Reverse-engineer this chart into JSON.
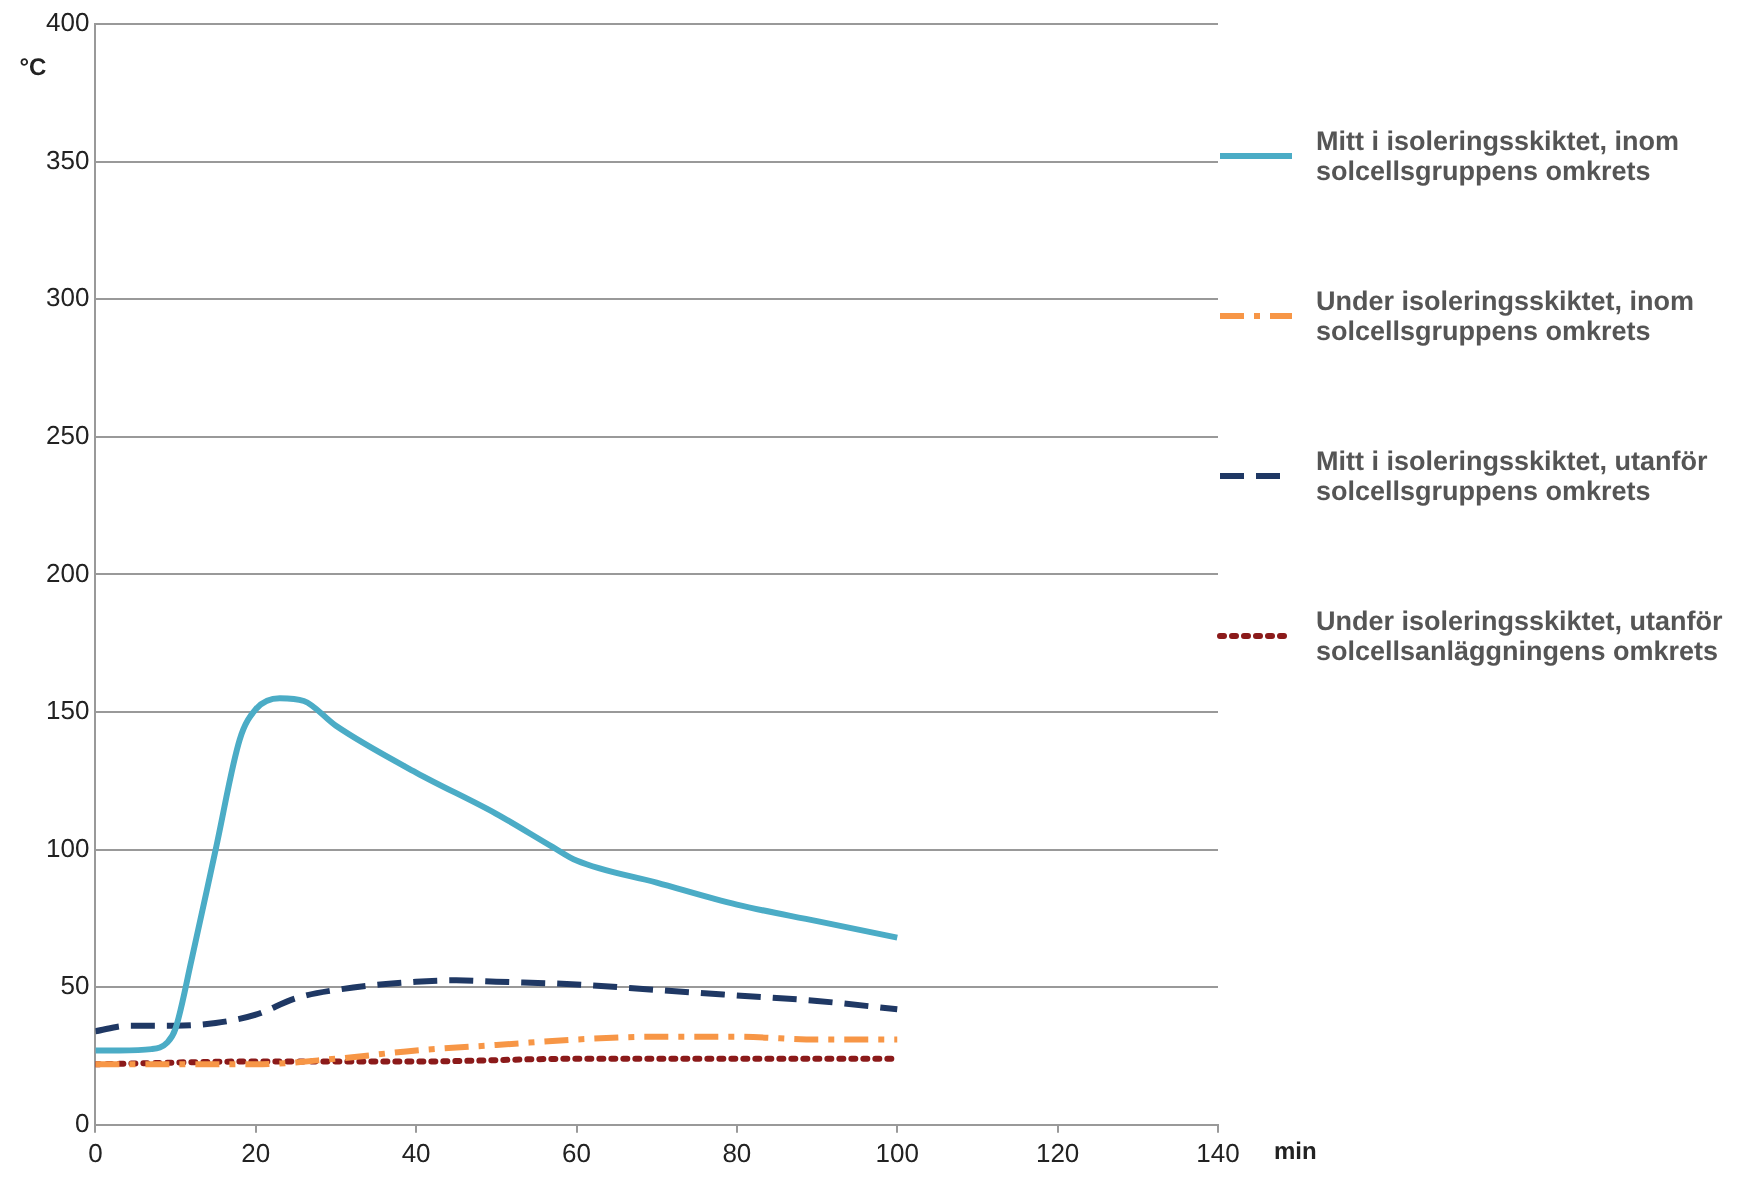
{
  "chart_data": {
    "type": "line",
    "xlabel": "min",
    "ylabel": "°C",
    "xlim": [
      0,
      140
    ],
    "xticks": [
      0,
      20,
      40,
      60,
      80,
      100,
      120,
      140
    ],
    "ylim": [
      0,
      400
    ],
    "yticks": [
      0,
      50,
      100,
      150,
      200,
      250,
      300,
      350,
      400
    ],
    "grid": "y",
    "legend": "right",
    "marker": "none",
    "series": [
      {
        "name": "Mitt i isoleringsskiktet, inom solcellsgruppens omkrets",
        "color": "#4bacc6",
        "line_style": "solid",
        "x": [
          0,
          3,
          7,
          9,
          10,
          12,
          15,
          18,
          20,
          23,
          26,
          30,
          40,
          50,
          57,
          60,
          70,
          80,
          90,
          100
        ],
        "values": [
          27,
          27,
          27.5,
          30,
          35,
          60,
          100,
          140,
          151,
          155,
          154,
          145,
          128,
          113,
          101,
          96,
          88,
          80,
          74,
          68
        ]
      },
      {
        "name": "Under isoleringsskiktet, inom solcellsgruppens omkrets",
        "color": "#f79646",
        "line_style": "dashdot",
        "x": [
          0,
          10,
          20,
          30,
          40,
          50,
          60,
          70,
          80,
          90,
          100
        ],
        "values": [
          22,
          22,
          22,
          24,
          27,
          29,
          31,
          32,
          32,
          31,
          31
        ]
      },
      {
        "name": "Mitt i isoleringsskiktet, utanför solcellsgruppens omkrets",
        "color": "#1f3864",
        "line_style": "dashed",
        "x": [
          0,
          4,
          10,
          15,
          20,
          25,
          30,
          40,
          45,
          50,
          60,
          70,
          80,
          90,
          100
        ],
        "values": [
          34,
          36,
          36,
          37,
          40,
          46,
          49,
          52,
          52.5,
          52,
          51,
          49,
          47,
          45,
          42
        ]
      },
      {
        "name": "Under isoleringsskiktet, utanför solcellsanläggningens omkrets",
        "color": "#8b1a1a",
        "line_style": "dotted",
        "x": [
          0,
          20,
          40,
          60,
          80,
          100
        ],
        "values": [
          22,
          23,
          23,
          24,
          24,
          24
        ]
      }
    ]
  }
}
